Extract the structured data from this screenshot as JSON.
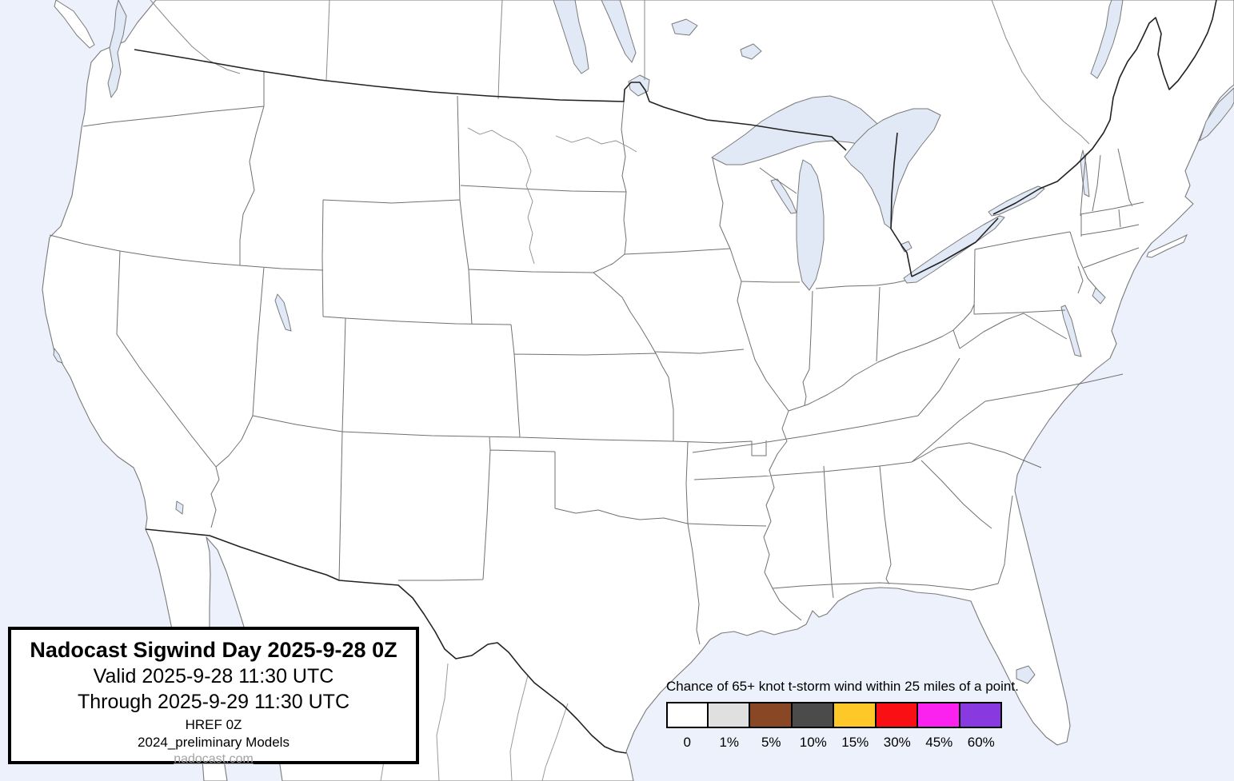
{
  "map": {
    "region_label": "Continental United States with state boundaries",
    "ocean_color": "#edf1fb",
    "lake_color": "#e2e9f6",
    "land_color": "#ffffff",
    "state_border_color": "#707070",
    "national_border_color": "#222222"
  },
  "title_box": {
    "title": "Nadocast Sigwind Day 2025-9-28 0Z",
    "valid_line": "Valid 2025-9-28 11:30 UTC",
    "through_line": "Through 2025-9-29 11:30 UTC",
    "model_line": "HREF 0Z",
    "models_line": "2024_preliminary Models",
    "link": "nadocast.com"
  },
  "legend": {
    "title": "Chance of 65+ knot t-storm wind within 25 miles of a point.",
    "bins": [
      {
        "label": "0",
        "color": "#ffffff"
      },
      {
        "label": "1%",
        "color": "#e0e0e0"
      },
      {
        "label": "5%",
        "color": "#8a4726"
      },
      {
        "label": "10%",
        "color": "#4b4b4b"
      },
      {
        "label": "15%",
        "color": "#fec829"
      },
      {
        "label": "30%",
        "color": "#fa1014"
      },
      {
        "label": "45%",
        "color": "#fb22f0"
      },
      {
        "label": "60%",
        "color": "#8939e0"
      }
    ]
  }
}
